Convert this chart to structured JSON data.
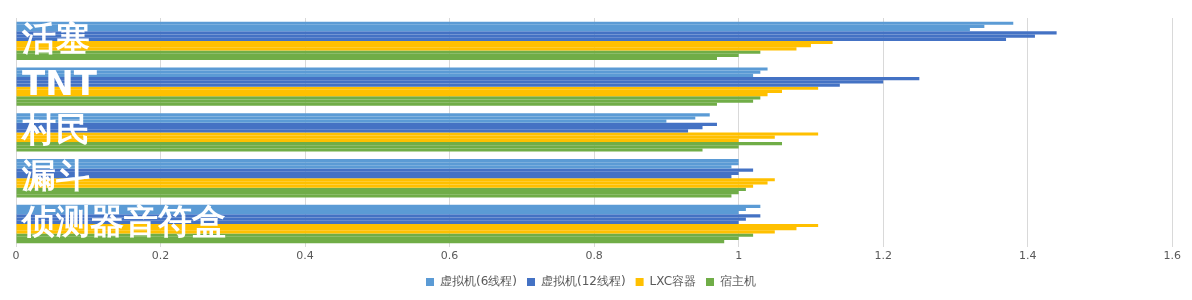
{
  "chart_data": {
    "type": "bar",
    "orientation": "horizontal",
    "categories": [
      "活塞",
      "TNT",
      "村民",
      "漏斗",
      "侦测器音符盒"
    ],
    "series": [
      {
        "name": "虚拟机(6线程)",
        "color": "#5b9bd5",
        "values": [
          1.38,
          1.04,
          0.96,
          1.0,
          1.03
        ]
      },
      {
        "color": "#5b9bd5",
        "values": [
          1.34,
          1.03,
          0.94,
          1.0,
          1.01
        ]
      },
      {
        "color": "#5b9bd5",
        "values": [
          1.32,
          1.02,
          0.9,
          0.99,
          1.0
        ]
      },
      {
        "name": "虚拟机(12线程)",
        "color": "#4472c4",
        "values": [
          1.44,
          1.25,
          0.97,
          1.02,
          1.03
        ]
      },
      {
        "color": "#4472c4",
        "values": [
          1.41,
          1.2,
          0.95,
          1.0,
          1.01
        ]
      },
      {
        "color": "#4472c4",
        "values": [
          1.37,
          1.14,
          0.93,
          0.99,
          1.0
        ]
      },
      {
        "name": "LXC容器",
        "color": "#ffc000",
        "values": [
          1.13,
          1.11,
          1.11,
          1.05,
          1.11
        ]
      },
      {
        "color": "#ffc000",
        "values": [
          1.1,
          1.06,
          1.05,
          1.04,
          1.08
        ]
      },
      {
        "color": "#ffc000",
        "values": [
          1.08,
          1.04,
          1.0,
          1.02,
          1.05
        ]
      },
      {
        "name": "宿主机",
        "color": "#70ad47",
        "values": [
          1.03,
          1.03,
          1.06,
          1.01,
          1.02
        ]
      },
      {
        "color": "#70ad47",
        "values": [
          1.0,
          1.02,
          1.0,
          1.0,
          1.0
        ]
      },
      {
        "color": "#70ad47",
        "values": [
          0.97,
          0.97,
          0.95,
          0.99,
          0.98
        ]
      }
    ],
    "xlim": [
      0,
      1.6
    ],
    "xticks": [
      0,
      0.2,
      0.4,
      0.6,
      0.8,
      1,
      1.2,
      1.4,
      1.6
    ],
    "grid": "x",
    "legend": "bottom"
  }
}
